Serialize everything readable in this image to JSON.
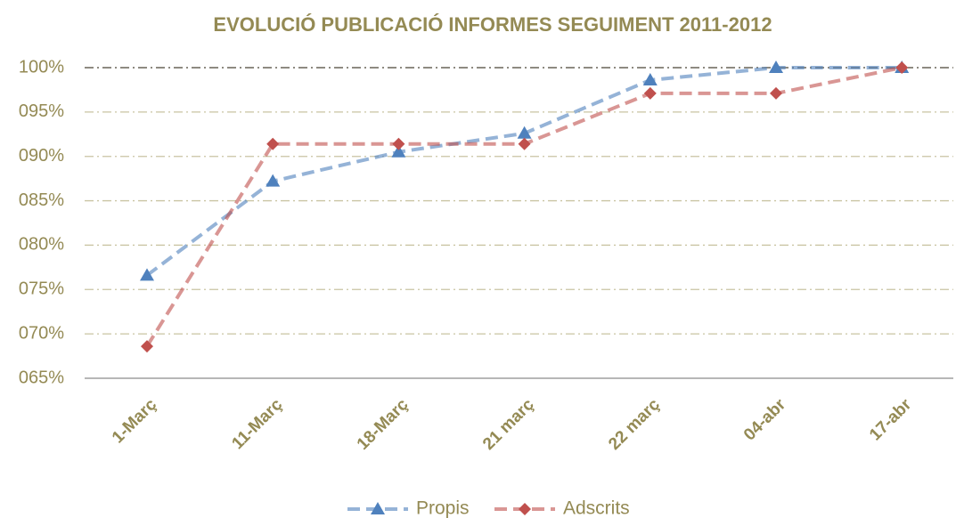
{
  "chart_data": {
    "type": "line",
    "title": "EVOLUCIÓ PUBLICACIÓ INFORMES SEGUIMENT 2011-2012",
    "categories": [
      "1-Març",
      "11-Març",
      "18-Març",
      "21 març",
      "22 març",
      "04-abr",
      "17-abr"
    ],
    "series": [
      {
        "name": "Propis",
        "color": "#4f81bd",
        "marker": "triangle",
        "values": [
          76.6,
          87.2,
          90.5,
          92.6,
          98.6,
          100,
          100
        ]
      },
      {
        "name": "Adscrits",
        "color": "#c0504d",
        "marker": "diamond",
        "values": [
          68.6,
          91.4,
          91.4,
          91.4,
          97.1,
          97.1,
          100
        ]
      }
    ],
    "ylim": [
      65,
      100
    ],
    "yticks": [
      {
        "value": 65,
        "label": "065%"
      },
      {
        "value": 70,
        "label": "070%"
      },
      {
        "value": 75,
        "label": "075%"
      },
      {
        "value": 80,
        "label": "080%"
      },
      {
        "value": 85,
        "label": "085%"
      },
      {
        "value": 90,
        "label": "090%"
      },
      {
        "value": 95,
        "label": "095%"
      },
      {
        "value": 100,
        "label": "100%"
      }
    ],
    "grid": true,
    "legend": "bottom"
  }
}
